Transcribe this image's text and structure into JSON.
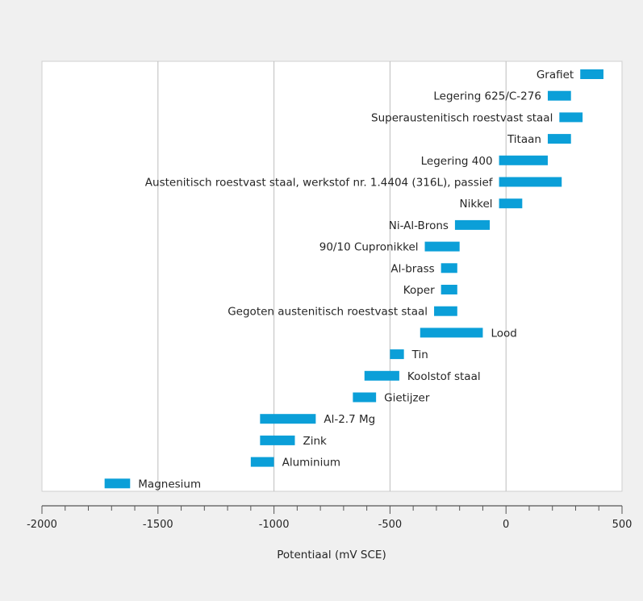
{
  "chart_data": {
    "type": "bar",
    "orientation": "horizontal-range",
    "title": "",
    "xlabel": "Potentiaal (mV SCE)",
    "ylabel": "",
    "xlim": [
      -2000,
      500
    ],
    "grid": true,
    "bar_color": "#0b9fd8",
    "categories": [
      "Grafiet",
      "Legering 625/C-276",
      "Superaustenitisch roestvast staal",
      "Titaan",
      "Legering 400",
      "Austenitisch roestvast staal, werkstof nr. 1.4404 (316L), passief",
      "Nikkel",
      "Ni-Al-Brons",
      "90/10 Cupronikkel",
      "Al-brass",
      "Koper",
      "Gegoten austenitisch roestvast staal",
      "Lood",
      "Tin",
      "Koolstof staal",
      "Gietijzer",
      "Al-2.7 Mg",
      "Zink",
      "Aluminium",
      "Magnesium"
    ],
    "ranges": [
      [
        320,
        420
      ],
      [
        180,
        280
      ],
      [
        230,
        330
      ],
      [
        180,
        280
      ],
      [
        -30,
        180
      ],
      [
        -30,
        240
      ],
      [
        -30,
        70
      ],
      [
        -220,
        -70
      ],
      [
        -350,
        -200
      ],
      [
        -280,
        -210
      ],
      [
        -280,
        -210
      ],
      [
        -310,
        -210
      ],
      [
        -370,
        -100
      ],
      [
        -500,
        -440
      ],
      [
        -610,
        -460
      ],
      [
        -660,
        -560
      ],
      [
        -1060,
        -820
      ],
      [
        -1060,
        -910
      ],
      [
        -1100,
        -1000
      ],
      [
        -1730,
        -1620
      ]
    ],
    "label_side": [
      "left",
      "left",
      "left",
      "left",
      "left",
      "left",
      "left",
      "left",
      "left",
      "left",
      "left",
      "left",
      "right",
      "right",
      "right",
      "right",
      "right",
      "right",
      "right",
      "right"
    ],
    "x_ticks": [
      "-2000",
      "-1500",
      "-1000",
      "-500",
      "0",
      "500"
    ],
    "x_tick_values": [
      -2000,
      -1500,
      -1000,
      -500,
      0,
      500
    ]
  }
}
